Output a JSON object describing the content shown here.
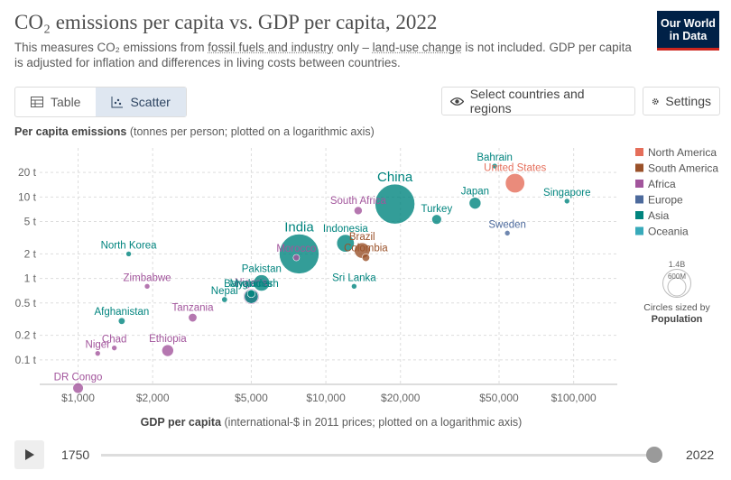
{
  "header": {
    "title": "CO₂ emissions per capita vs. GDP per capita, 2022",
    "subtitle_pre": "This measures CO₂ emissions from ",
    "subtitle_link1": "fossil fuels and industry",
    "subtitle_mid": " only – ",
    "subtitle_link2": "land-use change",
    "subtitle_post": " is not included. GDP per capita is adjusted for inflation and differences in living costs between countries.",
    "logo_line1": "Our World",
    "logo_line2": "in Data"
  },
  "toolbar": {
    "tab_table": "Table",
    "tab_scatter": "Scatter",
    "select_label": "Select countries and regions",
    "settings_label": "Settings"
  },
  "axis": {
    "y_title_bold": "Per capita emissions",
    "y_title_rest": " (tonnes per person; plotted on a logarithmic axis)",
    "x_title_bold": "GDP per capita",
    "x_title_rest": " (international-$ in 2011 prices; plotted on a logarithmic axis)"
  },
  "legend": {
    "size_title": "Circles sized by",
    "size_var": "Population",
    "size_big": "1.4B",
    "size_small": "600M"
  },
  "timeline": {
    "start": "1750",
    "end": "2022"
  },
  "colors": {
    "North America": "#e56e5a",
    "South America": "#9a5129",
    "Africa": "#a2559c",
    "Europe": "#4c6a9c",
    "Asia": "#00847e",
    "Oceania": "#38aaba"
  },
  "chart_data": {
    "type": "scatter",
    "x_scale": "log",
    "y_scale": "log",
    "xlim": [
      700,
      150000
    ],
    "ylim": [
      0.05,
      40
    ],
    "x_ticks": [
      1000,
      2000,
      5000,
      10000,
      20000,
      50000,
      100000
    ],
    "x_tick_labels": [
      "$1,000",
      "$2,000",
      "$5,000",
      "$10,000",
      "$20,000",
      "$50,000",
      "$100,000"
    ],
    "y_ticks": [
      0.1,
      0.2,
      0.5,
      1,
      2,
      5,
      10,
      20
    ],
    "y_tick_labels": [
      "0.1 t",
      "0.2 t",
      "0.5 t",
      "1 t",
      "2 t",
      "5 t",
      "10 t",
      "20 t"
    ],
    "grid": true,
    "legend_position": "right",
    "legend": [
      "North America",
      "South America",
      "Africa",
      "Europe",
      "Asia",
      "Oceania"
    ],
    "points": [
      {
        "label": "China",
        "region": "Asia",
        "x": 19000,
        "y": 8.2,
        "pop_m": 1420
      },
      {
        "label": "India",
        "region": "Asia",
        "x": 7800,
        "y": 2.0,
        "pop_m": 1420
      },
      {
        "label": "United States",
        "region": "North America",
        "x": 58000,
        "y": 14.8,
        "pop_m": 335
      },
      {
        "label": "Indonesia",
        "region": "Asia",
        "x": 12000,
        "y": 2.7,
        "pop_m": 276
      },
      {
        "label": "Pakistan",
        "region": "Asia",
        "x": 5500,
        "y": 0.88,
        "pop_m": 236
      },
      {
        "label": "Nigeria",
        "region": "Africa",
        "x": 5000,
        "y": 0.6,
        "pop_m": 219
      },
      {
        "label": "Bangladesh",
        "region": "Asia",
        "x": 5000,
        "y": 0.6,
        "pop_m": 171
      },
      {
        "label": "Brazil",
        "region": "South America",
        "x": 14000,
        "y": 2.2,
        "pop_m": 216
      },
      {
        "label": "Colombia",
        "region": "South America",
        "x": 14500,
        "y": 1.8,
        "pop_m": 52
      },
      {
        "label": "Ethiopia",
        "region": "Africa",
        "x": 2300,
        "y": 0.13,
        "pop_m": 123
      },
      {
        "label": "DR Congo",
        "region": "Africa",
        "x": 1000,
        "y": 0.045,
        "pop_m": 99
      },
      {
        "label": "Japan",
        "region": "Asia",
        "x": 40000,
        "y": 8.4,
        "pop_m": 124
      },
      {
        "label": "Turkey",
        "region": "Asia",
        "x": 28000,
        "y": 5.3,
        "pop_m": 85
      },
      {
        "label": "South Africa",
        "region": "Africa",
        "x": 13500,
        "y": 6.8,
        "pop_m": 60
      },
      {
        "label": "Morocco",
        "region": "Africa",
        "x": 7600,
        "y": 1.8,
        "pop_m": 37
      },
      {
        "label": "Bahrain",
        "region": "Asia",
        "x": 48000,
        "y": 24,
        "pop_m": 1.5
      },
      {
        "label": "Singapore",
        "region": "Asia",
        "x": 94000,
        "y": 8.9,
        "pop_m": 6
      },
      {
        "label": "Sweden",
        "region": "Europe",
        "x": 54000,
        "y": 3.6,
        "pop_m": 10
      },
      {
        "label": "North Korea",
        "region": "Asia",
        "x": 1600,
        "y": 2.0,
        "pop_m": 26
      },
      {
        "label": "Zimbabwe",
        "region": "Africa",
        "x": 1900,
        "y": 0.8,
        "pop_m": 16
      },
      {
        "label": "Nepal",
        "region": "Asia",
        "x": 3900,
        "y": 0.55,
        "pop_m": 30
      },
      {
        "label": "Myanmar",
        "region": "Asia",
        "x": 5000,
        "y": 0.65,
        "pop_m": 54
      },
      {
        "label": "Tanzania",
        "region": "Africa",
        "x": 2900,
        "y": 0.33,
        "pop_m": 65
      },
      {
        "label": "Afghanistan",
        "region": "Asia",
        "x": 1500,
        "y": 0.3,
        "pop_m": 41
      },
      {
        "label": "Chad",
        "region": "Africa",
        "x": 1400,
        "y": 0.14,
        "pop_m": 18
      },
      {
        "label": "Niger",
        "region": "Africa",
        "x": 1200,
        "y": 0.12,
        "pop_m": 26
      },
      {
        "label": "Sri Lanka",
        "region": "Asia",
        "x": 13000,
        "y": 0.8,
        "pop_m": 22
      }
    ]
  }
}
